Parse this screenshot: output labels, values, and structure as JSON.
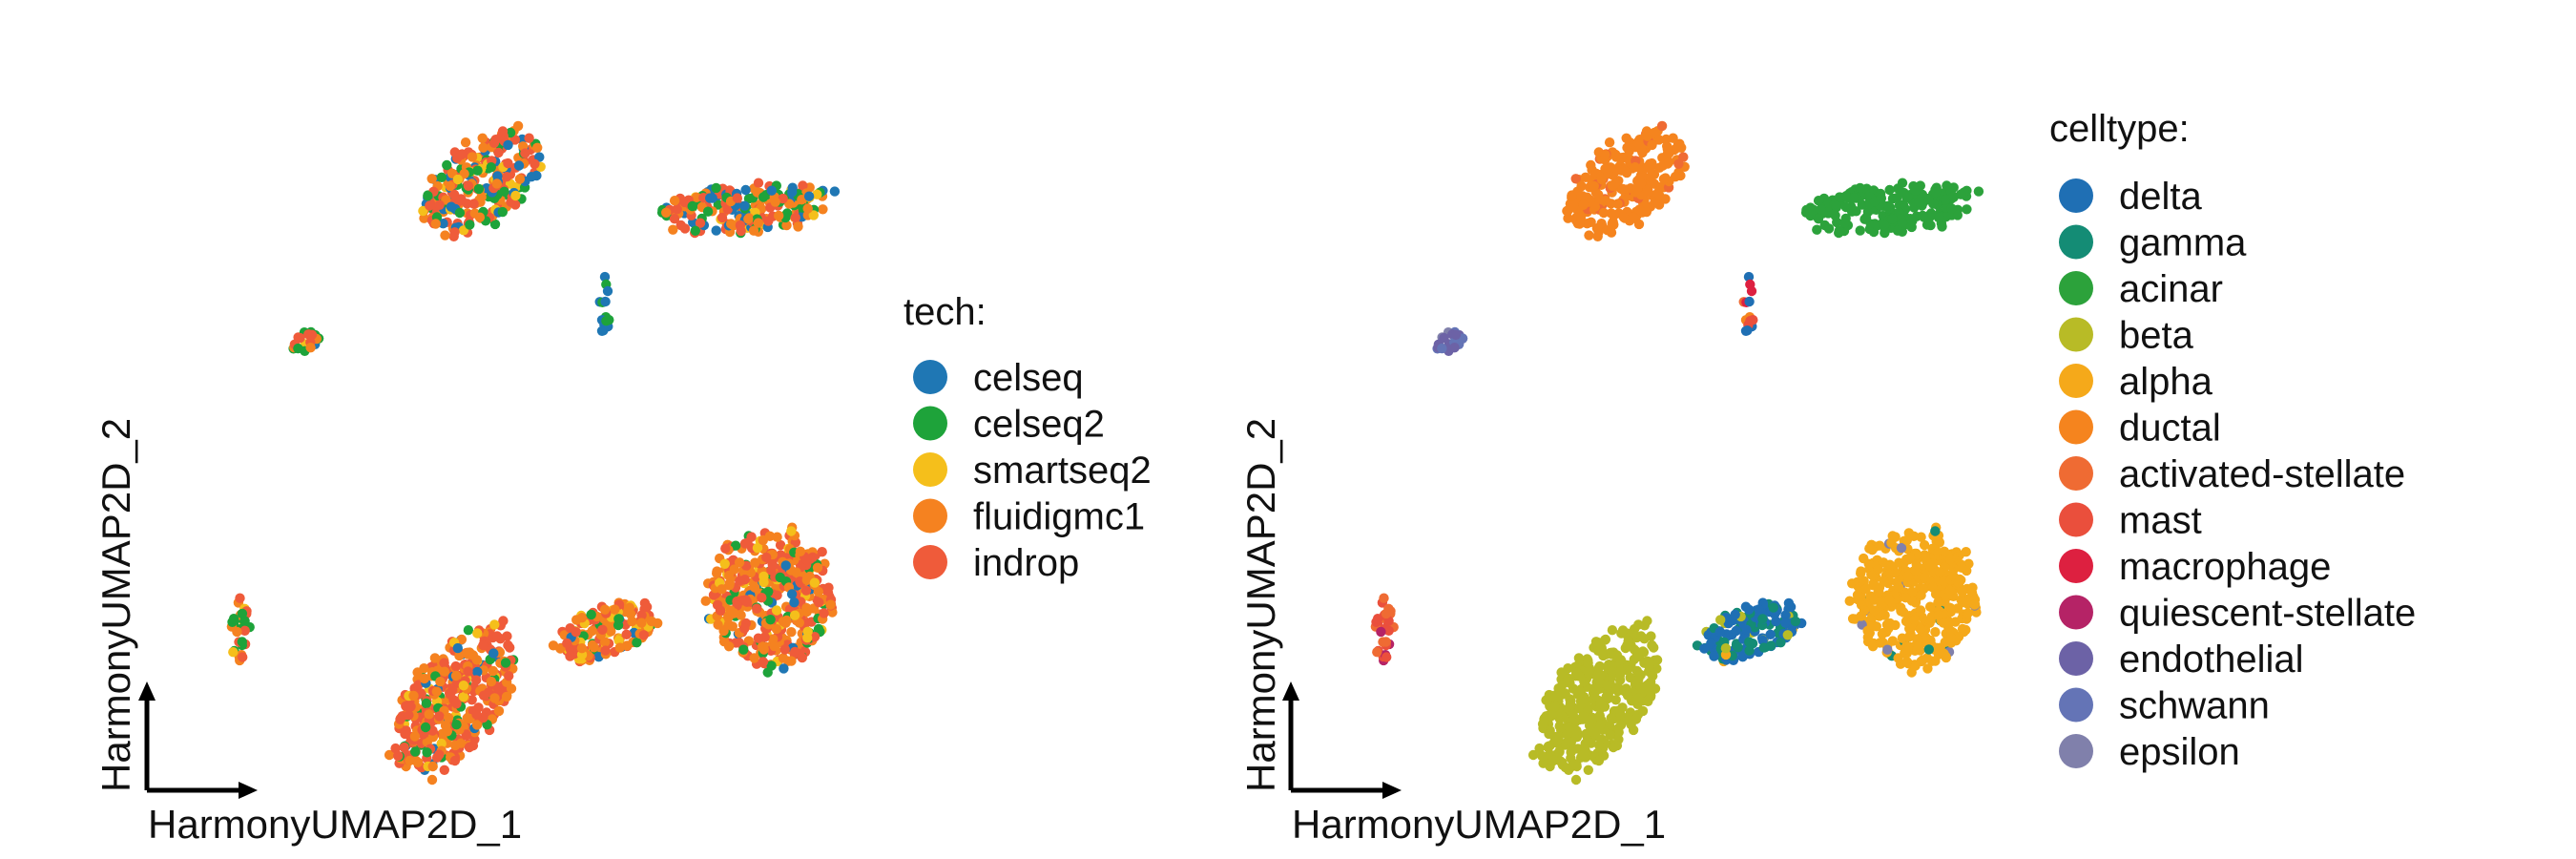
{
  "chart_data": [
    {
      "type": "scatter",
      "title": "",
      "xlabel": "HarmonyUMAP2D_1",
      "ylabel": "HarmonyUMAP2D_2",
      "legend_title": "tech:",
      "legend_position": "right",
      "grid": false,
      "categories": [
        {
          "name": "celseq",
          "color": "#1f77b4"
        },
        {
          "name": "celseq2",
          "color": "#1ea33a"
        },
        {
          "name": "smartseq2",
          "color": "#f5bf1b"
        },
        {
          "name": "fluidigmc1",
          "color": "#f58220"
        },
        {
          "name": "indrop",
          "color": "#ef5b3a"
        }
      ],
      "clusters": [
        {
          "cx": 5.2,
          "cy": 8.7,
          "rx": 1.0,
          "ry": 0.55,
          "tilt": 35,
          "n": 260,
          "weights": [
            0.14,
            0.14,
            0.1,
            0.27,
            0.35
          ]
        },
        {
          "cx": 9.3,
          "cy": 8.35,
          "rx": 1.3,
          "ry": 0.35,
          "tilt": 5,
          "n": 200,
          "weights": [
            0.2,
            0.2,
            0.06,
            0.27,
            0.27
          ]
        },
        {
          "cx": 7.1,
          "cy": 7.0,
          "rx": 0.08,
          "ry": 0.4,
          "tilt": 0,
          "n": 14,
          "weights": [
            0.6,
            0.3,
            0,
            0,
            0.1
          ]
        },
        {
          "cx": 2.5,
          "cy": 6.5,
          "rx": 0.22,
          "ry": 0.12,
          "tilt": 30,
          "n": 25,
          "weights": [
            0.05,
            0.35,
            0.2,
            0.2,
            0.2
          ]
        },
        {
          "cx": 1.5,
          "cy": 2.4,
          "rx": 0.15,
          "ry": 0.5,
          "tilt": 0,
          "n": 30,
          "weights": [
            0.05,
            0.35,
            0.1,
            0.25,
            0.25
          ]
        },
        {
          "cx": 4.8,
          "cy": 1.5,
          "rx": 1.25,
          "ry": 0.65,
          "tilt": 50,
          "n": 380,
          "weights": [
            0.05,
            0.1,
            0.05,
            0.35,
            0.45
          ]
        },
        {
          "cx": 7.1,
          "cy": 2.45,
          "rx": 0.8,
          "ry": 0.35,
          "tilt": 15,
          "n": 150,
          "weights": [
            0.04,
            0.1,
            0.16,
            0.35,
            0.35
          ]
        },
        {
          "cx": 9.65,
          "cy": 2.9,
          "rx": 0.95,
          "ry": 0.95,
          "tilt": 0,
          "n": 420,
          "weights": [
            0.06,
            0.1,
            0.09,
            0.4,
            0.35
          ]
        }
      ]
    },
    {
      "type": "scatter",
      "title": "",
      "xlabel": "HarmonyUMAP2D_1",
      "ylabel": "HarmonyUMAP2D_2",
      "legend_title": "celltype:",
      "legend_position": "right",
      "grid": false,
      "categories": [
        {
          "name": "delta",
          "color": "#1f6fb4"
        },
        {
          "name": "gamma",
          "color": "#148c75"
        },
        {
          "name": "acinar",
          "color": "#2ca23b"
        },
        {
          "name": "beta",
          "color": "#b8bb26"
        },
        {
          "name": "alpha",
          "color": "#f5a91a"
        },
        {
          "name": "ductal",
          "color": "#f5841e"
        },
        {
          "name": "activated-stellate",
          "color": "#ef6b33"
        },
        {
          "name": "mast",
          "color": "#ea4f3c"
        },
        {
          "name": "macrophage",
          "color": "#dd2040"
        },
        {
          "name": "quiescent-stellate",
          "color": "#b52366"
        },
        {
          "name": "endothelial",
          "color": "#6c62a6"
        },
        {
          "name": "schwann",
          "color": "#6474b6"
        },
        {
          "name": "epsilon",
          "color": "#8080ab"
        }
      ],
      "clusters": [
        {
          "cx": 5.2,
          "cy": 8.7,
          "rx": 1.0,
          "ry": 0.55,
          "tilt": 35,
          "n": 260,
          "weights": [
            0,
            0,
            0,
            0,
            0,
            0.92,
            0.08,
            0,
            0,
            0,
            0,
            0,
            0
          ]
        },
        {
          "cx": 9.3,
          "cy": 8.35,
          "rx": 1.3,
          "ry": 0.35,
          "tilt": 5,
          "n": 200,
          "weights": [
            0,
            0,
            1,
            0,
            0,
            0,
            0,
            0,
            0,
            0,
            0,
            0,
            0
          ]
        },
        {
          "cx": 7.1,
          "cy": 7.0,
          "rx": 0.08,
          "ry": 0.4,
          "tilt": 0,
          "n": 14,
          "weights": [
            0.2,
            0,
            0,
            0,
            0,
            0.2,
            0.2,
            0.1,
            0.3,
            0,
            0,
            0,
            0
          ]
        },
        {
          "cx": 2.5,
          "cy": 6.5,
          "rx": 0.22,
          "ry": 0.12,
          "tilt": 30,
          "n": 25,
          "weights": [
            0,
            0,
            0,
            0,
            0,
            0,
            0,
            0,
            0,
            0,
            0.5,
            0.3,
            0.2
          ]
        },
        {
          "cx": 1.5,
          "cy": 2.4,
          "rx": 0.15,
          "ry": 0.5,
          "tilt": 0,
          "n": 30,
          "weights": [
            0,
            0,
            0,
            0,
            0,
            0,
            0.5,
            0.3,
            0,
            0.2,
            0,
            0,
            0
          ]
        },
        {
          "cx": 4.8,
          "cy": 1.5,
          "rx": 1.25,
          "ry": 0.65,
          "tilt": 50,
          "n": 380,
          "weights": [
            0,
            0,
            0,
            1,
            0,
            0,
            0,
            0,
            0,
            0,
            0,
            0,
            0
          ]
        },
        {
          "cx": 7.1,
          "cy": 2.45,
          "rx": 0.8,
          "ry": 0.35,
          "tilt": 15,
          "n": 150,
          "weights": [
            0.55,
            0.35,
            0,
            0.06,
            0.04,
            0,
            0,
            0,
            0,
            0,
            0,
            0,
            0
          ]
        },
        {
          "cx": 9.65,
          "cy": 2.9,
          "rx": 0.95,
          "ry": 0.95,
          "tilt": 0,
          "n": 420,
          "weights": [
            0,
            0.02,
            0,
            0,
            0.96,
            0,
            0,
            0,
            0,
            0,
            0,
            0,
            0.02
          ]
        }
      ]
    }
  ]
}
